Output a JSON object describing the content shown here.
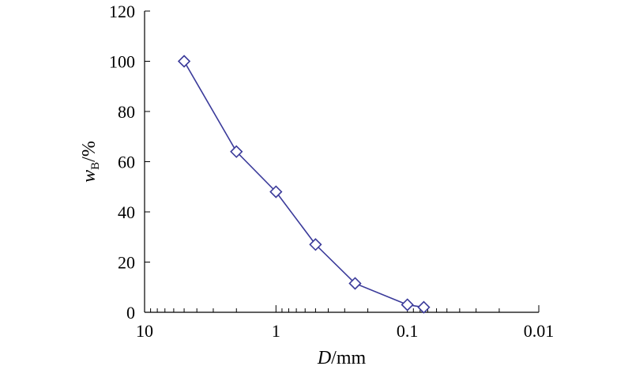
{
  "chart_data": {
    "type": "line",
    "xscale": "log",
    "x_reversed": true,
    "xlim": [
      10,
      0.01
    ],
    "ylim": [
      0,
      120
    ],
    "x_ticks": [
      10,
      1,
      0.1,
      0.01
    ],
    "x_tick_labels": [
      "10",
      "1",
      "0.1",
      "0.01"
    ],
    "y_ticks": [
      0,
      20,
      40,
      60,
      80,
      100,
      120
    ],
    "y_tick_labels": [
      "0",
      "20",
      "40",
      "60",
      "80",
      "100",
      "120"
    ],
    "xlabel_italic": "D",
    "xlabel_rest": "/mm",
    "ylabel_italic": "w",
    "ylabel_sub": "B",
    "ylabel_rest": "/%",
    "grid": false,
    "series": [
      {
        "marker": "diamond",
        "color": "#3a3a9a",
        "x": [
          5,
          2,
          1,
          0.5,
          0.25,
          0.1,
          0.075
        ],
        "y": [
          100,
          64,
          48,
          27,
          11.5,
          3,
          2
        ]
      }
    ]
  }
}
